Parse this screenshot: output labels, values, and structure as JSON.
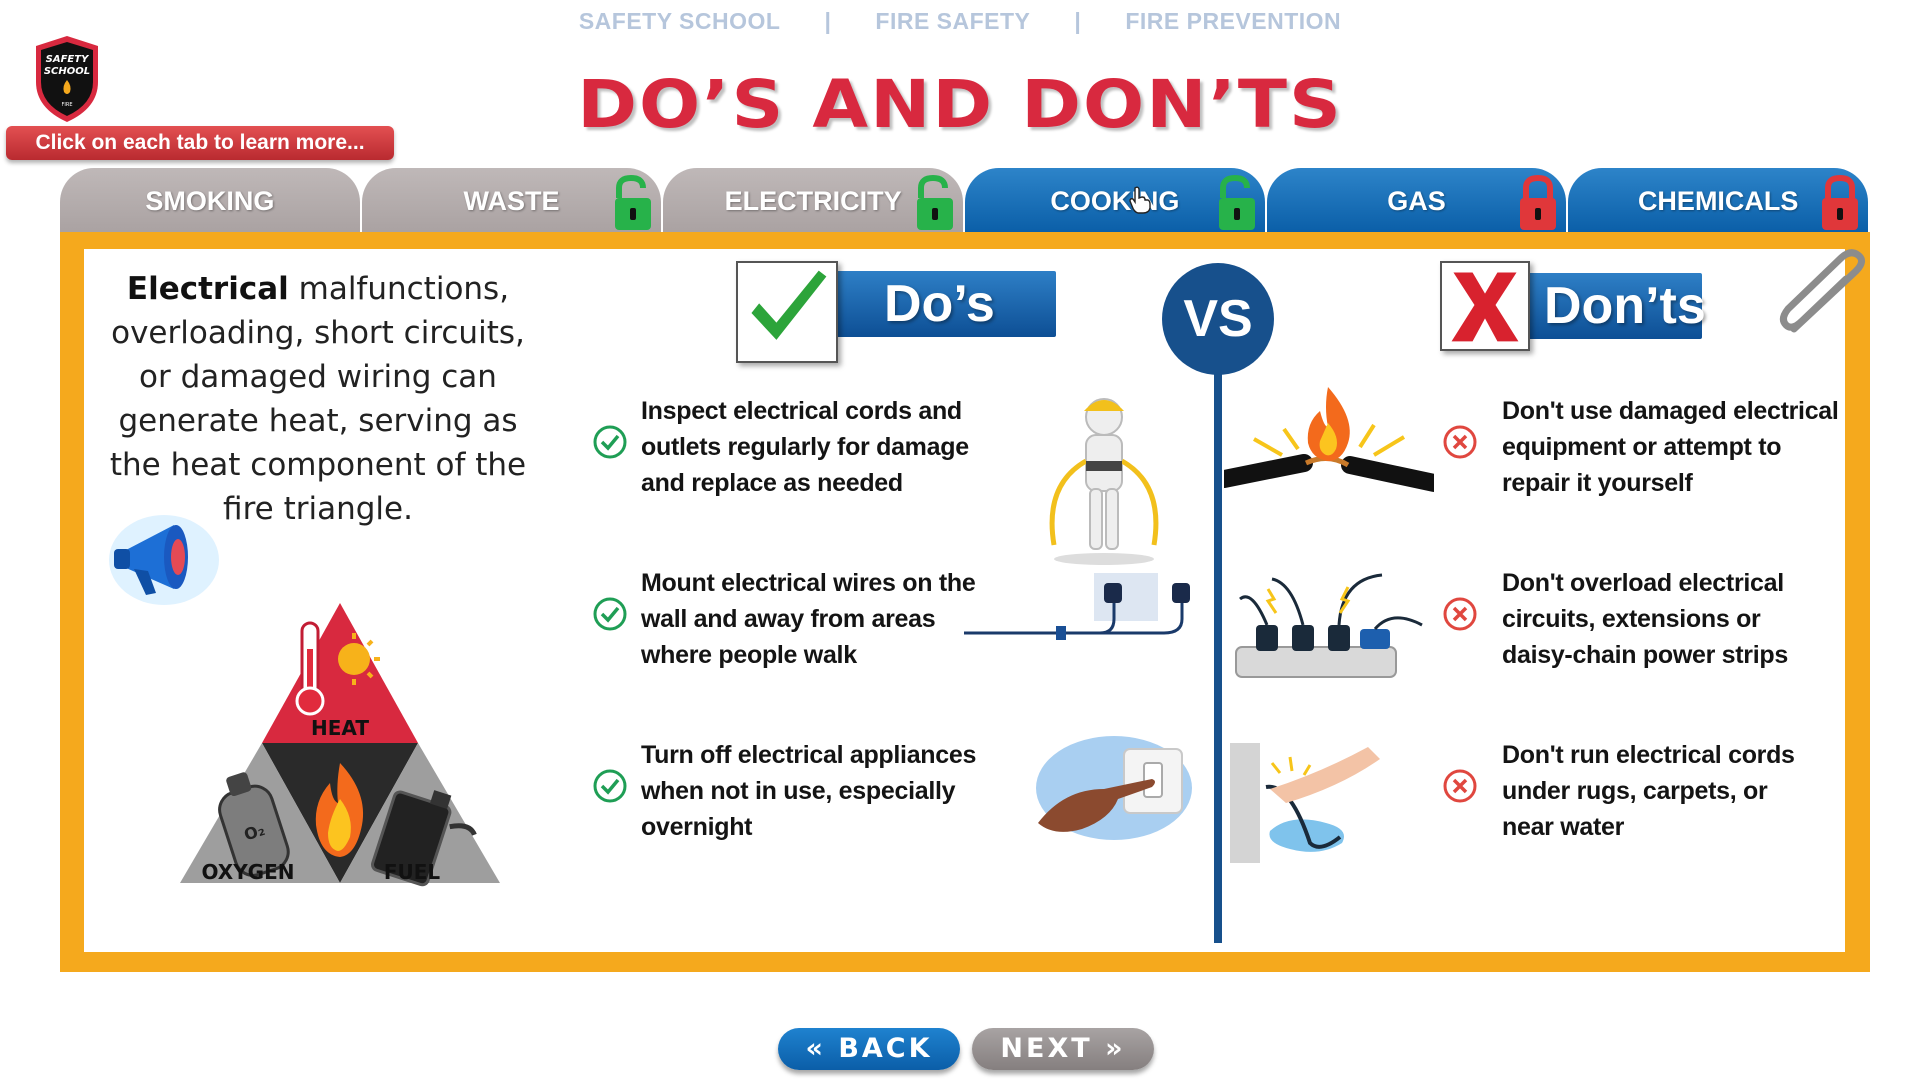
{
  "breadcrumb": {
    "items": [
      "SAFETY SCHOOL",
      "FIRE SAFETY",
      "FIRE PREVENTION"
    ],
    "separator": "|"
  },
  "page_title": "DO’S AND DON’TS",
  "logo": {
    "text_line1": "SAFETY",
    "text_line2": "SCHOOL",
    "text_line3": "FIRE"
  },
  "hint": "Click on each tab to learn more...",
  "tabs": [
    {
      "label": "SMOKING",
      "style": "grey",
      "lock": "none"
    },
    {
      "label": "WASTE",
      "style": "grey",
      "lock": "green"
    },
    {
      "label": "ELECTRICITY",
      "style": "grey",
      "lock": "green"
    },
    {
      "label": "COOKING",
      "style": "blue",
      "lock": "green"
    },
    {
      "label": "GAS",
      "style": "blue",
      "lock": "red"
    },
    {
      "label": "CHEMICALS",
      "style": "blue",
      "lock": "red"
    }
  ],
  "intro": {
    "bold": "Electrical",
    "text": " malfunctions, overloading, short circuits, or damaged wiring can generate heat, serving as the heat component of the fire triangle."
  },
  "triangle": {
    "heat": "HEAT",
    "oxygen": "OXYGEN",
    "fuel": "FUEL",
    "o2": "O₂"
  },
  "dos_title": "Do’s",
  "donts_title": "Don’ts",
  "vs": "VS",
  "dos": [
    "Inspect electrical cords and outlets regularly for damage and replace as needed",
    "Mount electrical wires on the wall and away from areas where people walk",
    "Turn off electrical appliances when not in use, especially overnight"
  ],
  "donts": [
    "Don't use damaged electrical equipment or attempt to repair it yourself",
    "Don't overload electrical circuits, extensions  or daisy-chain power strips",
    "Don't run electrical cords under rugs, carpets, or near water"
  ],
  "nav": {
    "back": "BACK",
    "next": "NEXT"
  },
  "colors": {
    "title_red": "#d8293f",
    "board_orange": "#f5a91d",
    "tab_blue": "#0b5fa8",
    "tab_grey": "#aaa2a2",
    "vs_blue": "#17508c",
    "check_green": "#1f9e55",
    "cross_red": "#e0473f"
  }
}
